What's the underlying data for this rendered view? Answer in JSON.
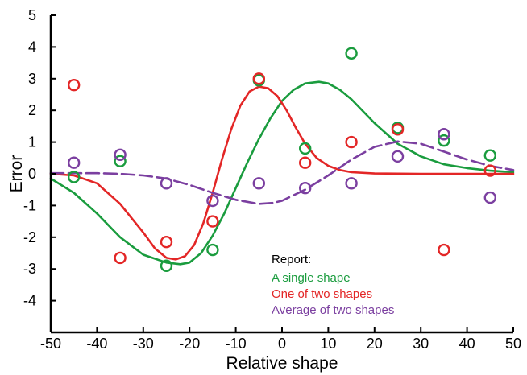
{
  "chart_data": {
    "type": "scatter",
    "title": "",
    "xlabel": "Relative shape",
    "ylabel": "Error",
    "xlim": [
      -50,
      50
    ],
    "ylim": [
      -5,
      5
    ],
    "xticks": [
      -50,
      -40,
      -30,
      -20,
      -10,
      0,
      10,
      20,
      30,
      40,
      50
    ],
    "yticks": [
      -4,
      -3,
      -2,
      -1,
      0,
      1,
      2,
      3,
      4,
      5
    ],
    "grid": false,
    "legend": {
      "placement": "bottom-right",
      "title": "Report:",
      "entries": [
        {
          "label": "A single shape",
          "color": "#1a9c3e"
        },
        {
          "label": "One of two shapes",
          "color": "#e32626"
        },
        {
          "label": "Average of two shapes",
          "color": "#7b3fa0"
        }
      ]
    },
    "series": [
      {
        "name": "A single shape",
        "color": "#1a9c3e",
        "line_style": "solid",
        "points": [
          [
            -45,
            -0.1
          ],
          [
            -35,
            0.4
          ],
          [
            -25,
            -2.9
          ],
          [
            -15,
            -2.4
          ],
          [
            -5,
            2.95
          ],
          [
            5,
            0.8
          ],
          [
            15,
            3.8
          ],
          [
            25,
            1.45
          ],
          [
            35,
            1.05
          ],
          [
            45,
            0.58
          ]
        ],
        "curve": [
          [
            -50,
            -0.15
          ],
          [
            -45,
            -0.6
          ],
          [
            -40,
            -1.25
          ],
          [
            -35,
            -2.0
          ],
          [
            -30,
            -2.55
          ],
          [
            -25,
            -2.8
          ],
          [
            -22,
            -2.85
          ],
          [
            -20,
            -2.8
          ],
          [
            -17.5,
            -2.5
          ],
          [
            -15,
            -1.95
          ],
          [
            -12.5,
            -1.25
          ],
          [
            -10,
            -0.45
          ],
          [
            -7.5,
            0.35
          ],
          [
            -5,
            1.1
          ],
          [
            -2.5,
            1.75
          ],
          [
            0,
            2.3
          ],
          [
            2.5,
            2.65
          ],
          [
            5,
            2.85
          ],
          [
            8,
            2.9
          ],
          [
            10,
            2.85
          ],
          [
            12.5,
            2.65
          ],
          [
            15,
            2.35
          ],
          [
            20,
            1.6
          ],
          [
            25,
            0.95
          ],
          [
            30,
            0.55
          ],
          [
            35,
            0.3
          ],
          [
            40,
            0.18
          ],
          [
            45,
            0.1
          ],
          [
            50,
            0.05
          ]
        ]
      },
      {
        "name": "One of two shapes",
        "color": "#e32626",
        "line_style": "solid",
        "points": [
          [
            -45,
            2.8
          ],
          [
            -35,
            -2.65
          ],
          [
            -25,
            -2.15
          ],
          [
            -15,
            -1.5
          ],
          [
            -5,
            3.0
          ],
          [
            5,
            0.35
          ],
          [
            15,
            1.0
          ],
          [
            25,
            1.4
          ],
          [
            35,
            -2.4
          ],
          [
            45,
            0.1
          ]
        ],
        "curve": [
          [
            -50,
            0.0
          ],
          [
            -45,
            -0.05
          ],
          [
            -40,
            -0.3
          ],
          [
            -35,
            -0.95
          ],
          [
            -30,
            -1.85
          ],
          [
            -27.5,
            -2.35
          ],
          [
            -25,
            -2.65
          ],
          [
            -23,
            -2.7
          ],
          [
            -21,
            -2.6
          ],
          [
            -19,
            -2.25
          ],
          [
            -17,
            -1.55
          ],
          [
            -15,
            -0.6
          ],
          [
            -13,
            0.45
          ],
          [
            -11,
            1.4
          ],
          [
            -9,
            2.15
          ],
          [
            -7,
            2.6
          ],
          [
            -5,
            2.75
          ],
          [
            -3,
            2.7
          ],
          [
            -1,
            2.45
          ],
          [
            1,
            2.0
          ],
          [
            3,
            1.45
          ],
          [
            5,
            0.95
          ],
          [
            7.5,
            0.5
          ],
          [
            10,
            0.25
          ],
          [
            12.5,
            0.12
          ],
          [
            15,
            0.05
          ],
          [
            20,
            0.01
          ],
          [
            30,
            0.0
          ],
          [
            50,
            0.0
          ]
        ]
      },
      {
        "name": "Average of two shapes",
        "color": "#7b3fa0",
        "line_style": "dashed",
        "points": [
          [
            -45,
            0.35
          ],
          [
            -35,
            0.6
          ],
          [
            -25,
            -0.3
          ],
          [
            -15,
            -0.85
          ],
          [
            -5,
            -0.3
          ],
          [
            5,
            -0.45
          ],
          [
            15,
            -0.3
          ],
          [
            25,
            0.55
          ],
          [
            35,
            1.25
          ],
          [
            45,
            -0.75
          ]
        ],
        "curve": [
          [
            -50,
            0.02
          ],
          [
            -40,
            0.02
          ],
          [
            -35,
            0.0
          ],
          [
            -30,
            -0.05
          ],
          [
            -25,
            -0.15
          ],
          [
            -20,
            -0.35
          ],
          [
            -15,
            -0.6
          ],
          [
            -10,
            -0.82
          ],
          [
            -5,
            -0.95
          ],
          [
            -2,
            -0.92
          ],
          [
            0,
            -0.85
          ],
          [
            5,
            -0.5
          ],
          [
            10,
            -0.05
          ],
          [
            15,
            0.45
          ],
          [
            20,
            0.85
          ],
          [
            25,
            1.02
          ],
          [
            30,
            0.95
          ],
          [
            35,
            0.7
          ],
          [
            40,
            0.45
          ],
          [
            45,
            0.25
          ],
          [
            50,
            0.12
          ]
        ]
      }
    ]
  }
}
